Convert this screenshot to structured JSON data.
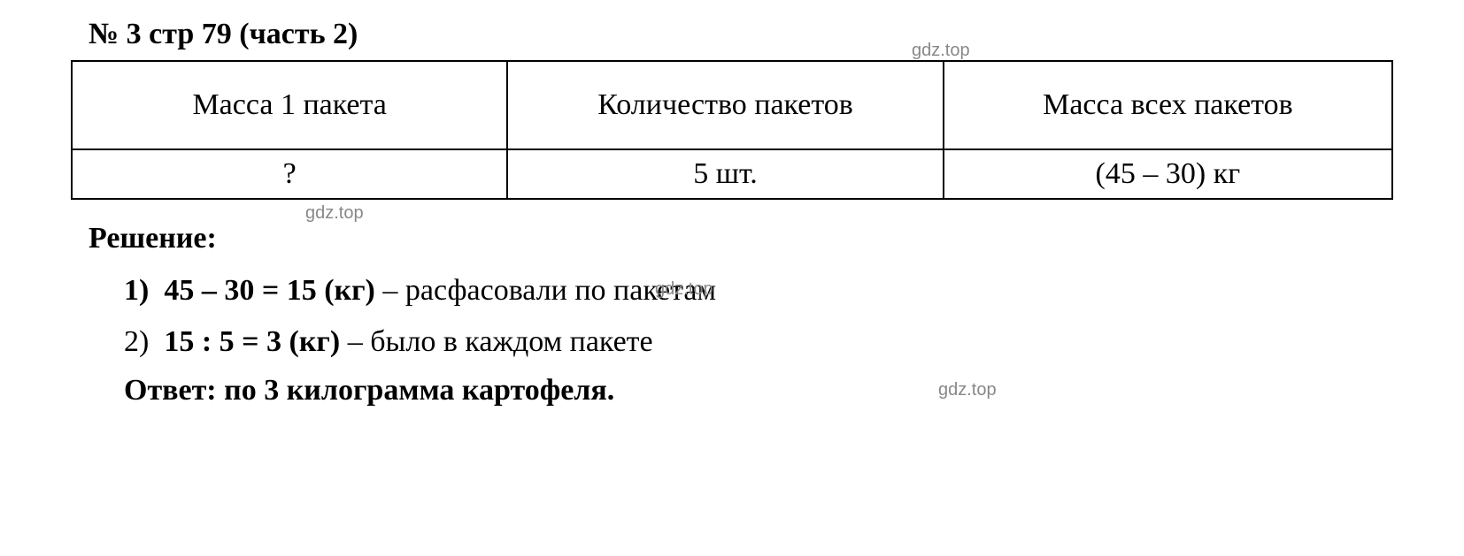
{
  "title": "№ 3 стр 79 (часть 2)",
  "watermark": "gdz.top",
  "table": {
    "headers": [
      "Масса 1 пакета",
      "Количество пакетов",
      "Масса  всех пакетов"
    ],
    "row": [
      "?",
      "5 шт.",
      "(45 – 30) кг"
    ]
  },
  "solution": {
    "label": "Решение:",
    "lines": [
      {
        "num": "1)",
        "bold": "45 – 30 = 15 (кг)",
        "rest": " – расфасовали по пакетам"
      },
      {
        "num": "2)",
        "bold": "15 : 5 = 3 (кг)",
        "rest": " – было в каждом пакете"
      }
    ],
    "answer": "Ответ: по 3 килограмма картофеля."
  },
  "styling": {
    "background_color": "#ffffff",
    "text_color": "#000000",
    "watermark_color": "#888888",
    "border_color": "#000000",
    "font_family": "Times New Roman",
    "title_fontsize": 34,
    "body_fontsize": 34,
    "watermark_fontsize": 20,
    "table_border_width": 2
  }
}
